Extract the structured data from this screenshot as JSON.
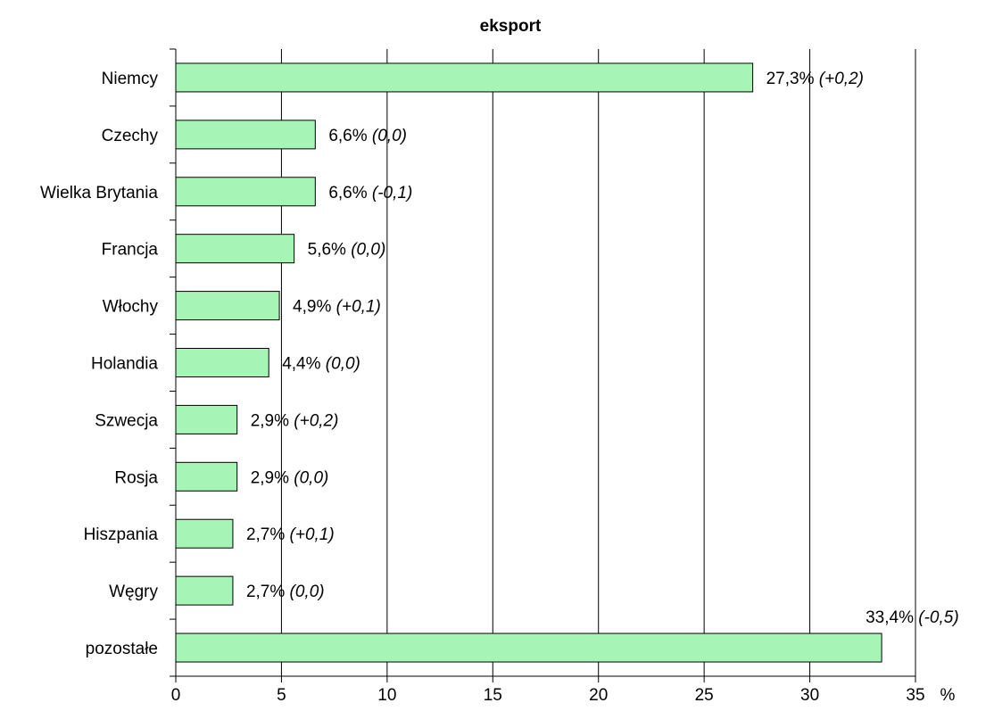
{
  "chart_data": {
    "type": "bar",
    "orientation": "horizontal",
    "title": "eksport",
    "xlabel": "",
    "ylabel": "",
    "x_unit": "%",
    "xlim": [
      0,
      35
    ],
    "x_ticks": [
      "0",
      "5",
      "10",
      "15",
      "20",
      "25",
      "30",
      "35"
    ],
    "grid": "vertical",
    "legend": "none",
    "bar_color": "#a6f5b6",
    "categories": [
      "Niemcy",
      "Czechy",
      "Wielka Brytania",
      "Francja",
      "Włochy",
      "Holandia",
      "Szwecja",
      "Rosja",
      "Hiszpania",
      "Węgry",
      "pozostałe"
    ],
    "values": [
      27.3,
      6.6,
      6.6,
      5.6,
      4.9,
      4.4,
      2.9,
      2.9,
      2.7,
      2.7,
      33.4
    ],
    "value_labels": [
      "27,3%",
      "6,6%",
      "6,6%",
      "5,6%",
      "4,9%",
      "4,4%",
      "2,9%",
      "2,9%",
      "2,7%",
      "2,7%",
      "33,4%"
    ],
    "change_labels": [
      "(+0,2)",
      "(0,0)",
      "(-0,1)",
      "(0,0)",
      "(+0,1)",
      "(0,0)",
      "(+0,2)",
      "(0,0)",
      "(+0,1)",
      "(0,0)",
      "(-0,5)"
    ]
  }
}
